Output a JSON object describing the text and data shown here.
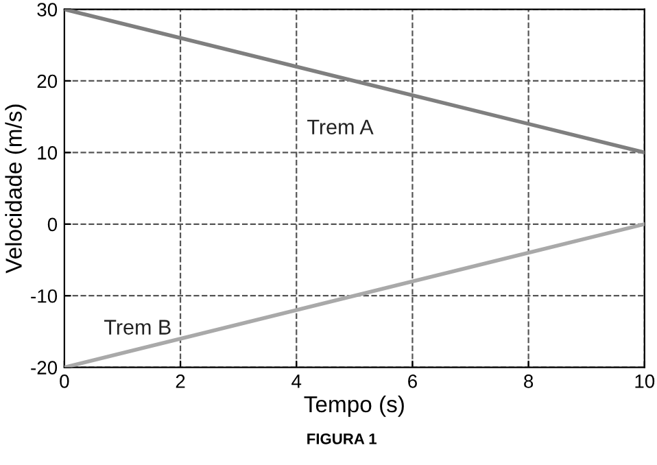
{
  "chart_data": {
    "type": "line",
    "xlabel": "Tempo (s)",
    "ylabel": "Velocidade (m/s)",
    "x": [
      0,
      10
    ],
    "series": [
      {
        "name": "Trem A",
        "color": "#7f7f7f",
        "values": [
          30,
          10
        ]
      },
      {
        "name": "Trem B",
        "color": "#a9a9a9",
        "values": [
          -20,
          0
        ]
      }
    ],
    "xlim": [
      0,
      10
    ],
    "ylim": [
      -20,
      30
    ],
    "xticks": [
      0,
      2,
      4,
      6,
      8,
      10
    ],
    "yticks": [
      -20,
      -10,
      0,
      10,
      20,
      30
    ],
    "grid": true,
    "marker": "none",
    "line_style": "solid",
    "legend": false,
    "annotations": [
      "FIGURA 1"
    ]
  }
}
